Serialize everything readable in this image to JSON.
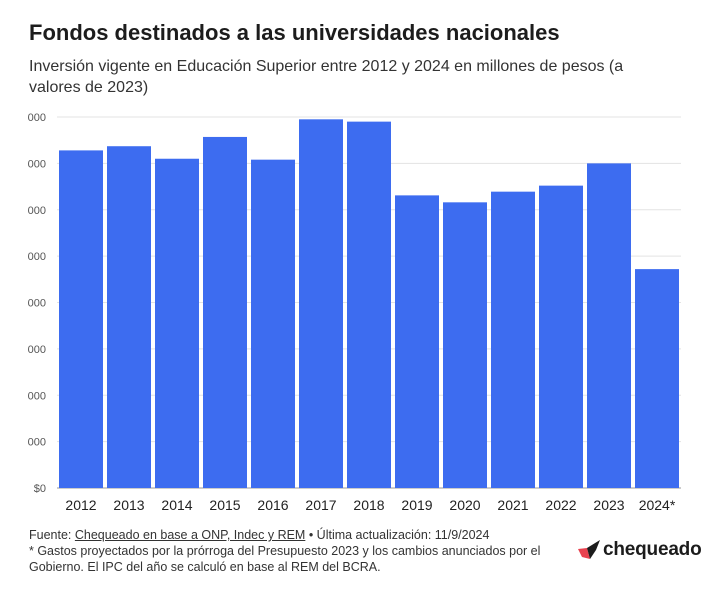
{
  "header": {
    "title": "Fondos destinados a las universidades nacionales",
    "subtitle": "Inversión vigente en Educación Superior entre 2012 y 2024 en millones de pesos (a valores de 2023)"
  },
  "chart_data": {
    "type": "bar",
    "categories": [
      "2012",
      "2013",
      "2014",
      "2015",
      "2016",
      "2017",
      "2018",
      "2019",
      "2020",
      "2021",
      "2022",
      "2023",
      "2024*"
    ],
    "values": [
      3640,
      3685,
      3550,
      3785,
      3540,
      3975,
      3950,
      3155,
      3080,
      3195,
      3260,
      3500,
      2360
    ],
    "ylim": [
      0,
      4000
    ],
    "y_ticks": [
      0,
      500,
      1000,
      1500,
      2000,
      2500,
      3000,
      3500,
      4000
    ],
    "y_tick_labels": [
      "$0",
      "000",
      "000",
      "000",
      "000",
      "000",
      "000",
      "000",
      "000"
    ],
    "bar_color": "#3d6cf0",
    "grid": true,
    "xlabel": "",
    "ylabel": ""
  },
  "footer": {
    "source_prefix": "Fuente: ",
    "source_link": "Chequeado en base a ONP, Indec y REM",
    "update": " • Última actualización: 11/9/2024",
    "note": "* Gastos proyectados por la prórroga del Presupuesto 2023 y los cambios anunciados por el Gobierno. El IPC del año se calculó en base al REM del BCRA."
  },
  "brand": {
    "name": "chequeado",
    "colors": {
      "mark_left": "#e8424f",
      "mark_right": "#1c1c1c"
    }
  }
}
